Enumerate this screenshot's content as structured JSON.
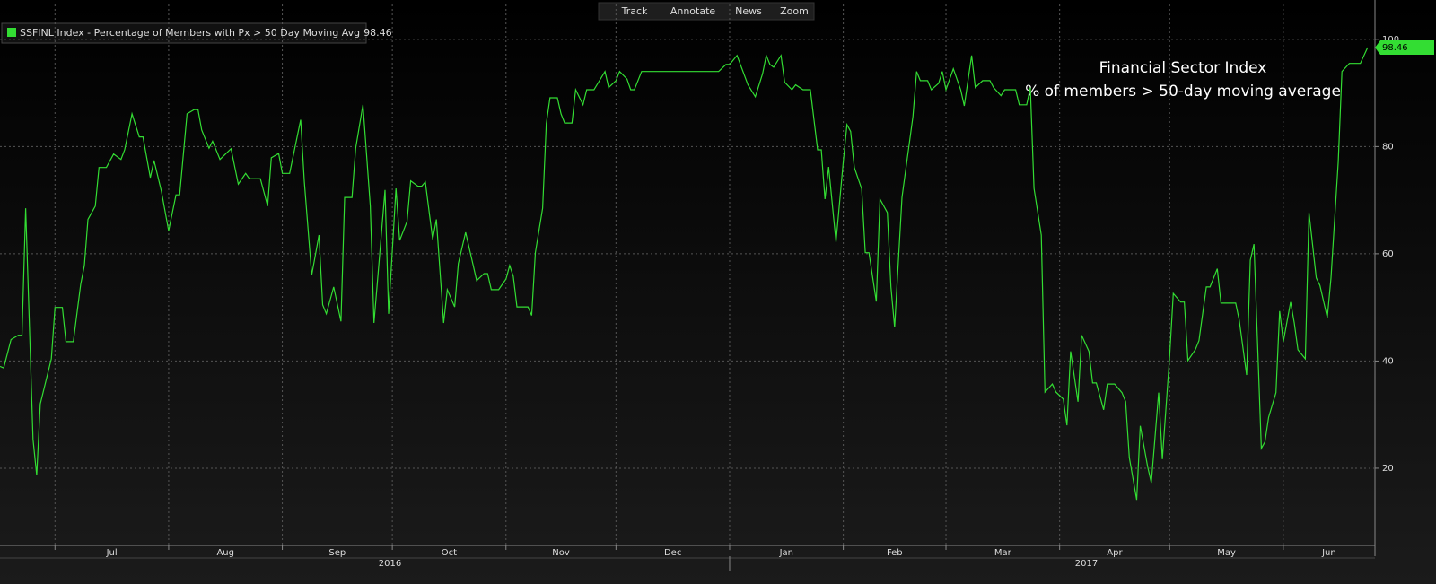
{
  "toolbar": [
    "Track",
    "Annotate",
    "News",
    "Zoom"
  ],
  "chart_data": {
    "type": "line",
    "annotations": [
      "Financial Sector Index",
      "% of members > 50-day moving average"
    ],
    "x": [
      -15,
      -14,
      -12,
      -10,
      -9,
      -8,
      -6,
      -5,
      -4,
      -1,
      0,
      2,
      3,
      5,
      7,
      8,
      9,
      11,
      12,
      14,
      16,
      18,
      19,
      21,
      23,
      24,
      26,
      27,
      29,
      31,
      33,
      34,
      36,
      38,
      39,
      40,
      42,
      43,
      45,
      48,
      50,
      52,
      53,
      56,
      58,
      59,
      61,
      62,
      64,
      67,
      68,
      70,
      72,
      73,
      74,
      76,
      78,
      79,
      81,
      82,
      84,
      86,
      87,
      90,
      91,
      93,
      94,
      96,
      97,
      99,
      100,
      101,
      103,
      104,
      106,
      107,
      109,
      110,
      112,
      114,
      115,
      117,
      118,
      119,
      121,
      123,
      124,
      125,
      126,
      129,
      130,
      131,
      133,
      134,
      135,
      137,
      138,
      139,
      141,
      142,
      144,
      145,
      147,
      150,
      151,
      153,
      154,
      156,
      157,
      158,
      160,
      162,
      181,
      183,
      184,
      186,
      189,
      191,
      193,
      194,
      195,
      196,
      198,
      199,
      201,
      202,
      204,
      206,
      208,
      209,
      210,
      211,
      213,
      215,
      216,
      217,
      218,
      220,
      221,
      222,
      224,
      225,
      227,
      228,
      229,
      231,
      232,
      234,
      235,
      236,
      238,
      239,
      241,
      242,
      243,
      245,
      247,
      248,
      250,
      251,
      253,
      255,
      256,
      258,
      259,
      262,
      263,
      265,
      266,
      267,
      269,
      270,
      272,
      273,
      275,
      276,
      277,
      279,
      280,
      282,
      283,
      284,
      286,
      287,
      289,
      291,
      292,
      293,
      295,
      296,
      298,
      299,
      301,
      302,
      304,
      305,
      307,
      308,
      309,
      311,
      312,
      314,
      315,
      317,
      318,
      320,
      322,
      323,
      325,
      326,
      327,
      329,
      330,
      331,
      333,
      334,
      335,
      337,
      338,
      339,
      341,
      342,
      344,
      345,
      347,
      348,
      350,
      351,
      353,
      354,
      356,
      358
    ],
    "series": [
      {
        "name": "SSFINL Index - Percentage of Members with Px > 50 Day Moving Avg",
        "color": "#33dd33",
        "values": [
          39,
          38.7,
          44,
          44.8,
          44.8,
          68.5,
          25.4,
          18.7,
          32,
          40.4,
          50,
          50,
          43.6,
          43.6,
          54.3,
          57.8,
          66.4,
          68.9,
          76.1,
          76.1,
          78.6,
          77.6,
          79.4,
          86.1,
          81.8,
          81.8,
          74.2,
          77.4,
          71.7,
          64.3,
          71,
          71,
          86.1,
          86.9,
          86.9,
          83.1,
          79.7,
          81,
          77.6,
          79.6,
          73,
          75,
          74,
          74,
          68.9,
          77.9,
          78.7,
          75,
          75,
          85,
          73.4,
          56,
          63.5,
          50.5,
          48.8,
          53.8,
          47.4,
          70.5,
          70.5,
          79.7,
          87.8,
          68.9,
          47.1,
          71.9,
          48.8,
          72.2,
          62.5,
          66,
          73.6,
          72.6,
          72.6,
          73.4,
          62.7,
          66.4,
          47.1,
          53.3,
          50.1,
          58.2,
          64,
          58,
          55,
          56.3,
          56.3,
          53.3,
          53.3,
          55.3,
          57.8,
          55.8,
          50.1,
          50.1,
          48.5,
          60.2,
          68.5,
          84.3,
          89.1,
          89.1,
          86.1,
          84.4,
          84.4,
          90.6,
          87.8,
          90.6,
          90.6,
          94,
          91,
          92.3,
          94,
          92.6,
          90.6,
          90.6,
          94,
          94,
          94,
          95.3,
          95.3,
          97,
          91.5,
          89.3,
          93.6,
          97,
          95.3,
          94.8,
          97,
          92,
          90.6,
          91.5,
          90.6,
          90.6,
          79.4,
          79.4,
          70.2,
          76.2,
          62.2,
          77.2,
          84.1,
          82.8,
          76.1,
          72.1,
          60.2,
          60.2,
          51.1,
          70.2,
          67.7,
          53.8,
          46.3,
          70.5,
          75.6,
          85.6,
          94,
          92.3,
          92.3,
          90.6,
          91.8,
          94,
          90.6,
          94.5,
          90.6,
          87.6,
          97,
          91,
          92.3,
          92.3,
          91,
          89.5,
          90.6,
          90.6,
          87.8,
          87.8,
          91,
          72.2,
          63.5,
          34.2,
          35.7,
          34.2,
          32.9,
          28,
          41.8,
          32.4,
          44.8,
          41.8,
          35.9,
          35.9,
          30.9,
          35.7,
          35.7,
          34.1,
          32.4,
          22,
          14.1,
          27.9,
          20.3,
          17.3,
          34.1,
          21.7,
          40.8,
          52.6,
          51,
          51,
          40.1,
          42.1,
          43.8,
          53.8,
          53.8,
          57.2,
          50.8,
          50.8,
          50.8,
          47.6,
          37.4,
          58.8,
          61.8,
          23.7,
          24.9,
          29.5,
          34.1,
          49.3,
          43.6,
          51,
          47.1,
          42.1,
          40.4,
          67.7,
          55.5,
          54.1,
          48.1,
          55.5,
          77.2,
          94,
          95.5,
          95.5,
          95.5,
          98.46
        ]
      }
    ],
    "xlim": [
      -15,
      360
    ],
    "xticks": [
      {
        "value": 0,
        "label": "Jul"
      },
      {
        "value": 31,
        "label": "Aug"
      },
      {
        "value": 62,
        "label": "Sep"
      },
      {
        "value": 92,
        "label": "Oct"
      },
      {
        "value": 123,
        "label": "Nov"
      },
      {
        "value": 153,
        "label": "Dec"
      },
      {
        "value": 184,
        "label": "Jan"
      },
      {
        "value": 215,
        "label": "Feb"
      },
      {
        "value": 243,
        "label": "Mar"
      },
      {
        "value": 274,
        "label": "Apr"
      },
      {
        "value": 304,
        "label": "May"
      },
      {
        "value": 335,
        "label": "Jun"
      }
    ],
    "years": [
      "2016",
      "2017"
    ],
    "ylim": [
      5.6,
      106.5
    ],
    "yticks": [
      20,
      40,
      60,
      80,
      100
    ],
    "grid": true
  }
}
